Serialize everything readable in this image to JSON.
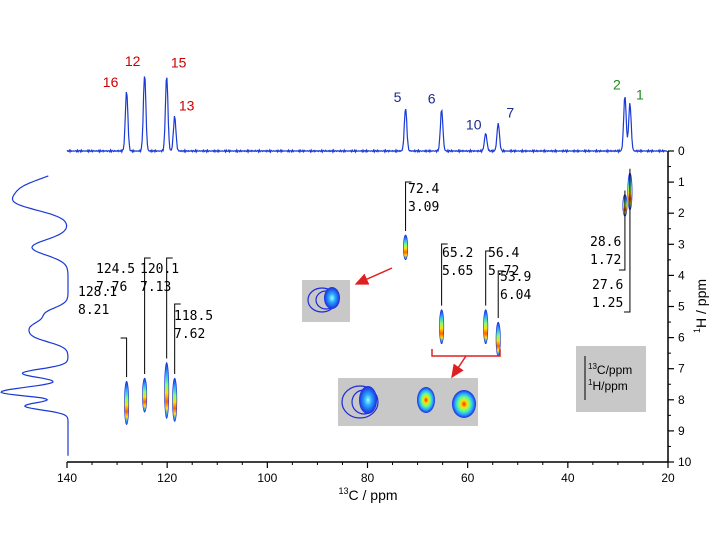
{
  "chart_data": {
    "type": "2D-NMR HSQC spectrum with 1D projections",
    "x_axis": {
      "label_sup": "13",
      "label": "C / ppm",
      "range": [
        140,
        20
      ],
      "ticks": [
        140,
        120,
        100,
        80,
        60,
        40,
        20
      ]
    },
    "y_axis": {
      "label_sup": "1",
      "label": "H / ppm",
      "range": [
        0,
        10
      ],
      "ticks": [
        0,
        1,
        2,
        3,
        4,
        5,
        6,
        7,
        8,
        9,
        10
      ]
    },
    "top_peaks": [
      {
        "label": "16",
        "c": 128.1,
        "height": 0.78,
        "color": "#cc0000"
      },
      {
        "label": "12",
        "c": 124.5,
        "height": 1.0,
        "color": "#cc0000"
      },
      {
        "label": "15",
        "c": 120.1,
        "height": 0.98,
        "color": "#cc0000"
      },
      {
        "label": "13",
        "c": 118.5,
        "height": 0.45,
        "color": "#cc0000"
      },
      {
        "label": "5",
        "c": 72.4,
        "height": 0.56,
        "color": "#1a2a8c"
      },
      {
        "label": "6",
        "c": 65.2,
        "height": 0.54,
        "color": "#1a2a8c"
      },
      {
        "label": "10",
        "c": 56.4,
        "height": 0.23,
        "color": "#1a2a8c"
      },
      {
        "label": "7",
        "c": 53.9,
        "height": 0.36,
        "color": "#1a2a8c"
      },
      {
        "label": "2",
        "c": 28.6,
        "height": 0.72,
        "color": "#1f8a1f"
      },
      {
        "label": "1",
        "c": 27.6,
        "height": 0.62,
        "color": "#1f8a1f"
      }
    ],
    "cross_peaks": [
      {
        "c": "128.1",
        "h": "8.21",
        "c_val": 128.1,
        "h_val": 8.21,
        "h_span": [
          7.4,
          8.8
        ]
      },
      {
        "c": "124.5",
        "h": "7.76",
        "c_val": 124.5,
        "h_val": 7.76,
        "h_span": [
          7.3,
          8.4
        ]
      },
      {
        "c": "120.1",
        "h": "7.13",
        "c_val": 120.1,
        "h_val": 7.13,
        "h_span": [
          6.8,
          8.6
        ]
      },
      {
        "c": "118.5",
        "h": "7.62",
        "c_val": 118.5,
        "h_val": 7.62,
        "h_span": [
          7.3,
          8.7
        ]
      },
      {
        "c": "72.4",
        "h": "3.09",
        "c_val": 72.4,
        "h_val": 3.09,
        "h_span": [
          2.7,
          3.5
        ]
      },
      {
        "c": "65.2",
        "h": "5.65",
        "c_val": 65.2,
        "h_val": 5.65,
        "h_span": [
          5.1,
          6.2
        ]
      },
      {
        "c": "56.4",
        "h": "5.72",
        "c_val": 56.4,
        "h_val": 5.72,
        "h_span": [
          5.1,
          6.2
        ]
      },
      {
        "c": "53.9",
        "h": "6.04",
        "c_val": 53.9,
        "h_val": 6.04,
        "h_span": [
          5.5,
          6.6
        ]
      },
      {
        "c": "28.6",
        "h": "1.72",
        "c_val": 28.6,
        "h_val": 1.72,
        "h_span": [
          1.4,
          2.1
        ]
      },
      {
        "c": "27.6",
        "h": "1.25",
        "c_val": 27.6,
        "h_val": 1.25,
        "h_span": [
          0.7,
          1.9
        ]
      }
    ],
    "legend": {
      "c_sup": "13",
      "c_text": "C/ppm",
      "h_sup": "1",
      "h_text": "H/ppm"
    },
    "colors": {
      "spectrum": "#1a3ad6",
      "axis": "#000000",
      "inset_bg": "#c8c8c8",
      "arrow": "#e02020"
    }
  }
}
